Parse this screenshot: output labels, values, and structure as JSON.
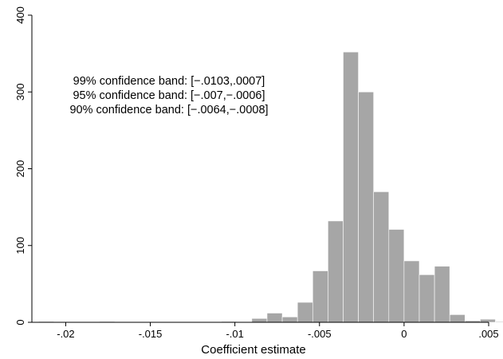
{
  "chart_data": {
    "type": "bar",
    "subtype": "histogram",
    "title": "",
    "xlabel": "Coefficient estimate",
    "ylabel": "",
    "xlim": [
      -0.022,
      0.005
    ],
    "ylim": [
      0,
      400
    ],
    "bin_width": 0.0009,
    "bar_color": "#a6a6a6",
    "grid": false,
    "x_ticks": [
      {
        "value": -0.02,
        "label": "-.02"
      },
      {
        "value": -0.015,
        "label": "-.015"
      },
      {
        "value": -0.01,
        "label": "-.01"
      },
      {
        "value": -0.005,
        "label": "-.005"
      },
      {
        "value": 0,
        "label": "0"
      },
      {
        "value": 0.005,
        "label": ".005"
      }
    ],
    "y_ticks": [
      {
        "value": 0,
        "label": "0"
      },
      {
        "value": 100,
        "label": "100"
      },
      {
        "value": 200,
        "label": "200"
      },
      {
        "value": 300,
        "label": "300"
      },
      {
        "value": 400,
        "label": "400"
      }
    ],
    "bins": [
      {
        "x0": -0.0216,
        "x1": -0.0207,
        "count": 1
      },
      {
        "x0": -0.018,
        "x1": -0.0171,
        "count": 1
      },
      {
        "x0": -0.0108,
        "x1": -0.0099,
        "count": 1
      },
      {
        "x0": -0.009,
        "x1": -0.0081,
        "count": 5
      },
      {
        "x0": -0.0081,
        "x1": -0.0072,
        "count": 12
      },
      {
        "x0": -0.0072,
        "x1": -0.0063,
        "count": 7
      },
      {
        "x0": -0.0063,
        "x1": -0.0054,
        "count": 26
      },
      {
        "x0": -0.0054,
        "x1": -0.0045,
        "count": 67
      },
      {
        "x0": -0.0045,
        "x1": -0.0036,
        "count": 132
      },
      {
        "x0": -0.0036,
        "x1": -0.0027,
        "count": 352
      },
      {
        "x0": -0.0027,
        "x1": -0.0018,
        "count": 300
      },
      {
        "x0": -0.0018,
        "x1": -0.0009,
        "count": 170
      },
      {
        "x0": -0.0009,
        "x1": 0.0,
        "count": 121
      },
      {
        "x0": 0.0,
        "x1": 0.0009,
        "count": 80
      },
      {
        "x0": 0.0009,
        "x1": 0.0018,
        "count": 62
      },
      {
        "x0": 0.0018,
        "x1": 0.0027,
        "count": 73
      },
      {
        "x0": 0.0027,
        "x1": 0.0036,
        "count": 10
      },
      {
        "x0": 0.0036,
        "x1": 0.0045,
        "count": 2
      },
      {
        "x0": 0.0045,
        "x1": 0.0054,
        "count": 4
      },
      {
        "x0": 0.0054,
        "x1": 0.0063,
        "count": 1
      }
    ],
    "annotations": [
      "99% confidence band: [−.0103,.0007]",
      "95% confidence band: [−.007,−.0006]",
      "90% confidence band: [−.0064,−.0008]"
    ]
  }
}
